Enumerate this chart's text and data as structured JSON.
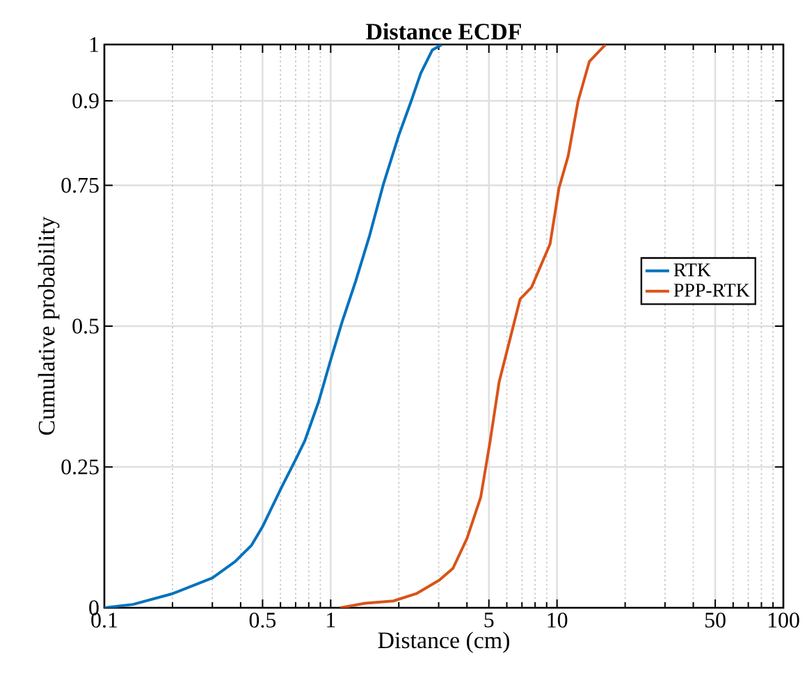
{
  "chart_data": {
    "type": "line",
    "title": "Distance ECDF",
    "xlabel": "Distance (cm)",
    "ylabel": "Cumulative probability",
    "log": "x",
    "grid": true,
    "legend": "right",
    "line_style": "solid",
    "marker": "none",
    "xlim": [
      0.1,
      100
    ],
    "ylim": [
      0,
      1
    ],
    "xticks": [
      0.1,
      {
        "value": 0.2,
        "label": null
      },
      {
        "value": 0.3,
        "label": null
      },
      {
        "value": 0.4,
        "label": null
      },
      0.5,
      {
        "value": 0.6,
        "label": null
      },
      {
        "value": 0.7,
        "label": null
      },
      {
        "value": 0.8,
        "label": null
      },
      {
        "value": 0.9,
        "label": null
      },
      1,
      {
        "value": 2,
        "label": null
      },
      {
        "value": 3,
        "label": null
      },
      {
        "value": 4,
        "label": null
      },
      5,
      {
        "value": 6,
        "label": null
      },
      {
        "value": 7,
        "label": null
      },
      {
        "value": 8,
        "label": null
      },
      {
        "value": 9,
        "label": null
      },
      10,
      {
        "value": 20,
        "label": null
      },
      {
        "value": 30,
        "label": null
      },
      {
        "value": 40,
        "label": null
      },
      50,
      {
        "value": 60,
        "label": null
      },
      {
        "value": 70,
        "label": null
      },
      {
        "value": 80,
        "label": null
      },
      {
        "value": 90,
        "label": null
      },
      100
    ],
    "yticks": [
      0,
      0.25,
      0.5,
      0.75,
      0.9,
      1
    ],
    "series": [
      {
        "name": "RTK",
        "color": "#0072bd",
        "x": [
          0.1,
          0.134,
          0.2,
          0.3,
          0.378,
          0.447,
          0.5,
          0.607,
          0.7,
          0.768,
          0.885,
          1.0,
          1.12,
          1.29,
          1.486,
          1.71,
          2.0,
          2.27,
          2.5,
          2.81,
          3.1
        ],
        "values": [
          0,
          0.006,
          0.025,
          0.053,
          0.082,
          0.111,
          0.144,
          0.214,
          0.263,
          0.296,
          0.366,
          0.44,
          0.506,
          0.58,
          0.661,
          0.752,
          0.839,
          0.9,
          0.949,
          0.99,
          1
        ]
      },
      {
        "name": "PPP-RTK",
        "color": "#d95319",
        "x": [
          1.1,
          1.42,
          1.89,
          2.39,
          3.02,
          3.47,
          4.0,
          4.6,
          5.06,
          5.55,
          6.1,
          6.87,
          7.72,
          9.32,
          10.2,
          11.2,
          12.4,
          13.9,
          16.4
        ],
        "values": [
          0,
          0.008,
          0.012,
          0.025,
          0.049,
          0.07,
          0.123,
          0.196,
          0.295,
          0.401,
          0.466,
          0.548,
          0.569,
          0.646,
          0.745,
          0.802,
          0.9,
          0.97,
          1
        ]
      }
    ]
  }
}
